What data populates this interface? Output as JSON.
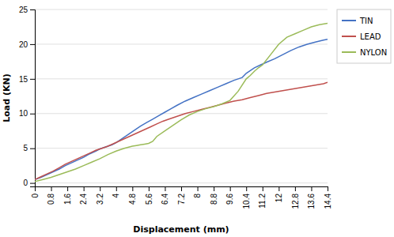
{
  "chart_data": {
    "type": "line",
    "x_label": "Displacement (mm)",
    "y_label": "Load (KN)",
    "xlim": [
      0,
      14.4
    ],
    "ylim": [
      -0.5,
      25
    ],
    "xticks": [
      0,
      0.8,
      1.6,
      2.4,
      3.2,
      4,
      4.8,
      5.6,
      6.4,
      7.2,
      8,
      8.8,
      9.6,
      10.4,
      11.2,
      12,
      12.8,
      13.6,
      14.4
    ],
    "yticks": [
      0,
      5,
      10,
      15,
      20,
      25
    ],
    "grid": true,
    "legend": "right",
    "series": [
      {
        "name": "TIN",
        "color": "#4472C4",
        "x": [
          0,
          0.3,
          0.6,
          0.9,
          1.2,
          1.5,
          1.8,
          2.1,
          2.4,
          2.7,
          3.0,
          3.2,
          3.4,
          3.6,
          3.8,
          4.0,
          4.3,
          4.6,
          4.9,
          5.2,
          5.5,
          5.8,
          6.1,
          6.4,
          6.7,
          7.0,
          7.4,
          7.8,
          8.2,
          8.6,
          9.0,
          9.4,
          9.8,
          10.2,
          10.4,
          10.6,
          10.8,
          11.1,
          11.4,
          11.8,
          12.2,
          12.6,
          13.0,
          13.4,
          13.8,
          14.2,
          14.4
        ],
        "values": [
          0.5,
          0.8,
          1.2,
          1.6,
          2.0,
          2.5,
          2.9,
          3.3,
          3.7,
          4.2,
          4.6,
          4.9,
          5.1,
          5.3,
          5.5,
          5.8,
          6.4,
          7.0,
          7.6,
          8.2,
          8.7,
          9.2,
          9.7,
          10.2,
          10.7,
          11.2,
          11.8,
          12.3,
          12.8,
          13.3,
          13.8,
          14.3,
          14.8,
          15.2,
          15.8,
          16.2,
          16.6,
          17.0,
          17.4,
          17.9,
          18.5,
          19.1,
          19.6,
          20.0,
          20.3,
          20.6,
          20.7
        ]
      },
      {
        "name": "LEAD",
        "color": "#C0504D",
        "x": [
          0,
          0.3,
          0.6,
          0.9,
          1.2,
          1.5,
          1.8,
          2.1,
          2.4,
          2.7,
          3.0,
          3.3,
          3.6,
          3.9,
          4.2,
          4.5,
          4.8,
          5.1,
          5.4,
          5.7,
          6.0,
          6.3,
          6.6,
          7.0,
          7.4,
          7.8,
          8.2,
          8.6,
          9.0,
          9.4,
          9.8,
          10.2,
          10.6,
          11.0,
          11.4,
          11.8,
          12.2,
          12.6,
          13.0,
          13.4,
          13.8,
          14.2,
          14.4
        ],
        "values": [
          0.5,
          0.9,
          1.3,
          1.7,
          2.2,
          2.7,
          3.1,
          3.5,
          3.9,
          4.3,
          4.7,
          5.0,
          5.3,
          5.7,
          6.1,
          6.5,
          6.9,
          7.3,
          7.7,
          8.1,
          8.5,
          8.9,
          9.2,
          9.6,
          10.0,
          10.3,
          10.6,
          10.9,
          11.2,
          11.5,
          11.8,
          12.0,
          12.3,
          12.6,
          12.9,
          13.1,
          13.3,
          13.5,
          13.7,
          13.9,
          14.1,
          14.3,
          14.5
        ]
      },
      {
        "name": "NYLON",
        "color": "#9BBB59",
        "x": [
          0,
          0.4,
          0.8,
          1.2,
          1.6,
          2.0,
          2.4,
          2.8,
          3.2,
          3.6,
          4.0,
          4.4,
          4.8,
          5.0,
          5.2,
          5.4,
          5.6,
          5.8,
          6.0,
          6.4,
          6.8,
          7.2,
          7.6,
          8.0,
          8.4,
          8.8,
          9.2,
          9.6,
          10.0,
          10.4,
          10.6,
          10.8,
          11.0,
          11.2,
          11.6,
          12.0,
          12.4,
          12.8,
          13.2,
          13.6,
          14.0,
          14.4
        ],
        "values": [
          0.2,
          0.5,
          0.8,
          1.2,
          1.6,
          2.0,
          2.5,
          3.0,
          3.5,
          4.1,
          4.6,
          5.0,
          5.3,
          5.4,
          5.5,
          5.6,
          5.7,
          6.0,
          6.7,
          7.5,
          8.3,
          9.1,
          9.8,
          10.3,
          10.7,
          11.0,
          11.4,
          11.9,
          13.2,
          15.0,
          15.5,
          16.1,
          16.6,
          17.0,
          18.5,
          20.0,
          21.0,
          21.5,
          22.0,
          22.5,
          22.8,
          23.0
        ]
      }
    ]
  }
}
